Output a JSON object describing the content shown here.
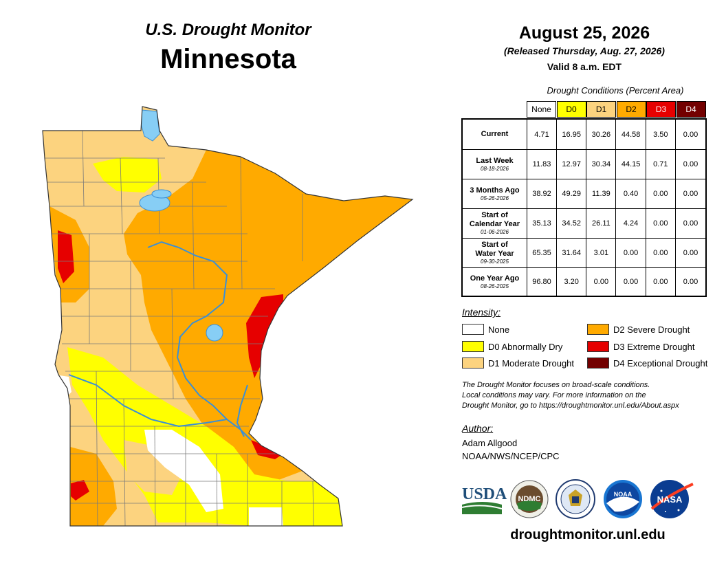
{
  "title": {
    "line1": "U.S. Drought Monitor",
    "state": "Minnesota"
  },
  "date": {
    "main": "August 25, 2026",
    "released": "(Released Thursday, Aug. 27, 2026)",
    "valid": "Valid 8 a.m. EDT"
  },
  "table": {
    "caption": "Drought Conditions (Percent Area)",
    "headers": [
      {
        "label": "None",
        "color": "#ffffff",
        "text_color": "#000000"
      },
      {
        "label": "D0",
        "color": "#ffff00",
        "text_color": "#000000"
      },
      {
        "label": "D1",
        "color": "#fcd37f",
        "text_color": "#000000"
      },
      {
        "label": "D2",
        "color": "#ffaa00",
        "text_color": "#000000"
      },
      {
        "label": "D3",
        "color": "#e60000",
        "text_color": "#ffffff"
      },
      {
        "label": "D4",
        "color": "#730000",
        "text_color": "#ffffff"
      }
    ],
    "rows": [
      {
        "label": [
          "Current"
        ],
        "date": "",
        "values": [
          "4.71",
          "16.95",
          "30.26",
          "44.58",
          "3.50",
          "0.00"
        ]
      },
      {
        "label": [
          "Last Week"
        ],
        "date": "08-18-2026",
        "values": [
          "11.83",
          "12.97",
          "30.34",
          "44.15",
          "0.71",
          "0.00"
        ]
      },
      {
        "label": [
          "3 Months Ago"
        ],
        "date": "05-26-2026",
        "values": [
          "38.92",
          "49.29",
          "11.39",
          "0.40",
          "0.00",
          "0.00"
        ]
      },
      {
        "label": [
          "Start of",
          "Calendar Year"
        ],
        "date": "01-06-2026",
        "values": [
          "35.13",
          "34.52",
          "26.11",
          "4.24",
          "0.00",
          "0.00"
        ]
      },
      {
        "label": [
          "Start of",
          "Water Year"
        ],
        "date": "09-30-2025",
        "values": [
          "65.35",
          "31.64",
          "3.01",
          "0.00",
          "0.00",
          "0.00"
        ]
      },
      {
        "label": [
          "One Year Ago"
        ],
        "date": "08-26-2025",
        "values": [
          "96.80",
          "3.20",
          "0.00",
          "0.00",
          "0.00",
          "0.00"
        ]
      }
    ]
  },
  "legend": {
    "title": "Intensity:",
    "items": [
      {
        "label": "None",
        "color": "#ffffff"
      },
      {
        "label": "D0 Abnormally Dry",
        "color": "#ffff00"
      },
      {
        "label": "D1 Moderate Drought",
        "color": "#fcd37f"
      },
      {
        "label": "D2 Severe Drought",
        "color": "#ffaa00"
      },
      {
        "label": "D3 Extreme Drought",
        "color": "#e60000"
      },
      {
        "label": "D4 Exceptional Drought",
        "color": "#730000"
      }
    ]
  },
  "note": {
    "line1": "The Drought Monitor focuses on broad-scale conditions.",
    "line2": "Local conditions may vary. For more information on the",
    "line3": "Drought Monitor, go to https://droughtmonitor.unl.edu/About.aspx"
  },
  "author": {
    "title": "Author:",
    "name": "Adam Allgood",
    "org": "NOAA/NWS/NCEP/CPC"
  },
  "logos": {
    "usda": "USDA",
    "ndmc": "NDMC",
    "noaa": "NOAA",
    "nasa": "NASA"
  },
  "footer": {
    "url": "droughtmonitor.unl.edu"
  },
  "map_colors": {
    "d0": "#ffff00",
    "d1": "#fcd37f",
    "d2": "#ffaa00",
    "d3": "#e60000",
    "water": "#87cef5",
    "river": "#3a8fd6"
  }
}
